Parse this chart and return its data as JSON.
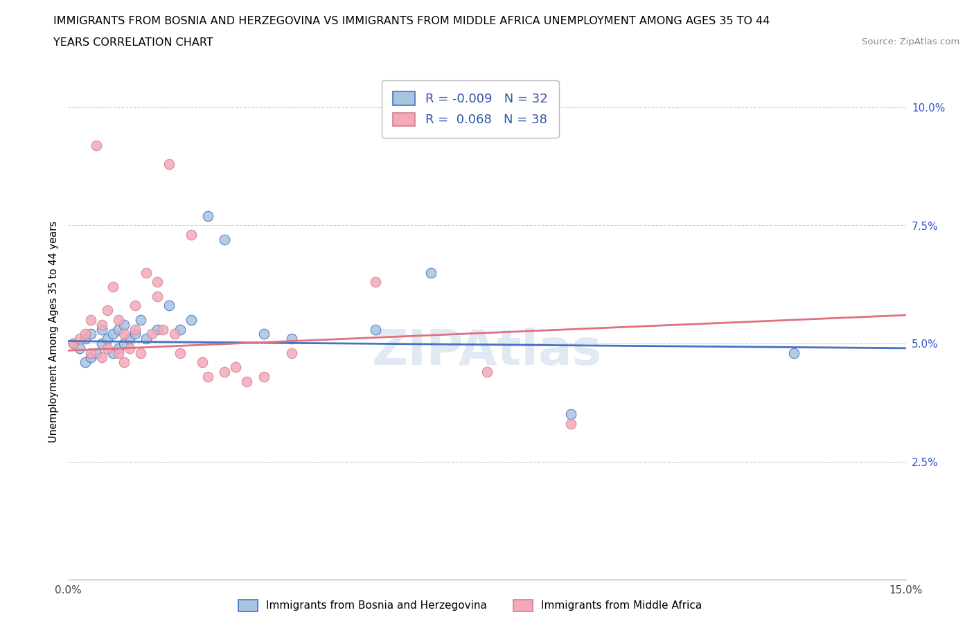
{
  "title_line1": "IMMIGRANTS FROM BOSNIA AND HERZEGOVINA VS IMMIGRANTS FROM MIDDLE AFRICA UNEMPLOYMENT AMONG AGES 35 TO 44",
  "title_line2": "YEARS CORRELATION CHART",
  "source": "Source: ZipAtlas.com",
  "ylabel": "Unemployment Among Ages 35 to 44 years",
  "xlim": [
    0.0,
    0.15
  ],
  "ylim": [
    0.0,
    0.105
  ],
  "xticks": [
    0.0,
    0.05,
    0.1,
    0.15
  ],
  "xtick_labels": [
    "0.0%",
    "",
    "",
    "15.0%"
  ],
  "yticks": [
    0.0,
    0.025,
    0.05,
    0.075,
    0.1
  ],
  "ytick_labels": [
    "",
    "2.5%",
    "5.0%",
    "7.5%",
    "10.0%"
  ],
  "R_blue": -0.009,
  "N_blue": 32,
  "R_pink": 0.068,
  "N_pink": 38,
  "legend_label_blue": "Immigrants from Bosnia and Herzegovina",
  "legend_label_pink": "Immigrants from Middle Africa",
  "color_blue": "#a8c4e0",
  "color_pink": "#f4a8b8",
  "line_color_blue": "#4472c4",
  "line_color_pink": "#e07080",
  "blue_scatter_x": [
    0.001,
    0.002,
    0.003,
    0.003,
    0.004,
    0.004,
    0.005,
    0.006,
    0.006,
    0.007,
    0.008,
    0.008,
    0.009,
    0.009,
    0.01,
    0.01,
    0.011,
    0.012,
    0.013,
    0.014,
    0.016,
    0.018,
    0.02,
    0.022,
    0.025,
    0.028,
    0.035,
    0.04,
    0.055,
    0.065,
    0.09,
    0.13
  ],
  "blue_scatter_y": [
    0.05,
    0.049,
    0.046,
    0.051,
    0.047,
    0.052,
    0.048,
    0.05,
    0.053,
    0.051,
    0.048,
    0.052,
    0.049,
    0.053,
    0.05,
    0.054,
    0.051,
    0.052,
    0.055,
    0.051,
    0.053,
    0.058,
    0.053,
    0.055,
    0.077,
    0.072,
    0.052,
    0.051,
    0.053,
    0.065,
    0.035,
    0.048
  ],
  "pink_scatter_x": [
    0.001,
    0.002,
    0.003,
    0.004,
    0.004,
    0.005,
    0.006,
    0.006,
    0.007,
    0.007,
    0.008,
    0.009,
    0.009,
    0.01,
    0.01,
    0.011,
    0.012,
    0.012,
    0.013,
    0.014,
    0.015,
    0.016,
    0.016,
    0.017,
    0.018,
    0.019,
    0.02,
    0.022,
    0.024,
    0.025,
    0.028,
    0.03,
    0.032,
    0.035,
    0.04,
    0.055,
    0.075,
    0.09
  ],
  "pink_scatter_y": [
    0.05,
    0.051,
    0.052,
    0.048,
    0.055,
    0.092,
    0.047,
    0.054,
    0.049,
    0.057,
    0.062,
    0.048,
    0.055,
    0.046,
    0.052,
    0.049,
    0.053,
    0.058,
    0.048,
    0.065,
    0.052,
    0.06,
    0.063,
    0.053,
    0.088,
    0.052,
    0.048,
    0.073,
    0.046,
    0.043,
    0.044,
    0.045,
    0.042,
    0.043,
    0.048,
    0.063,
    0.044,
    0.033
  ],
  "blue_line_x": [
    0.0,
    0.15
  ],
  "blue_line_y": [
    0.0505,
    0.049
  ],
  "pink_line_x": [
    0.0,
    0.15
  ],
  "pink_line_y": [
    0.0485,
    0.056
  ]
}
